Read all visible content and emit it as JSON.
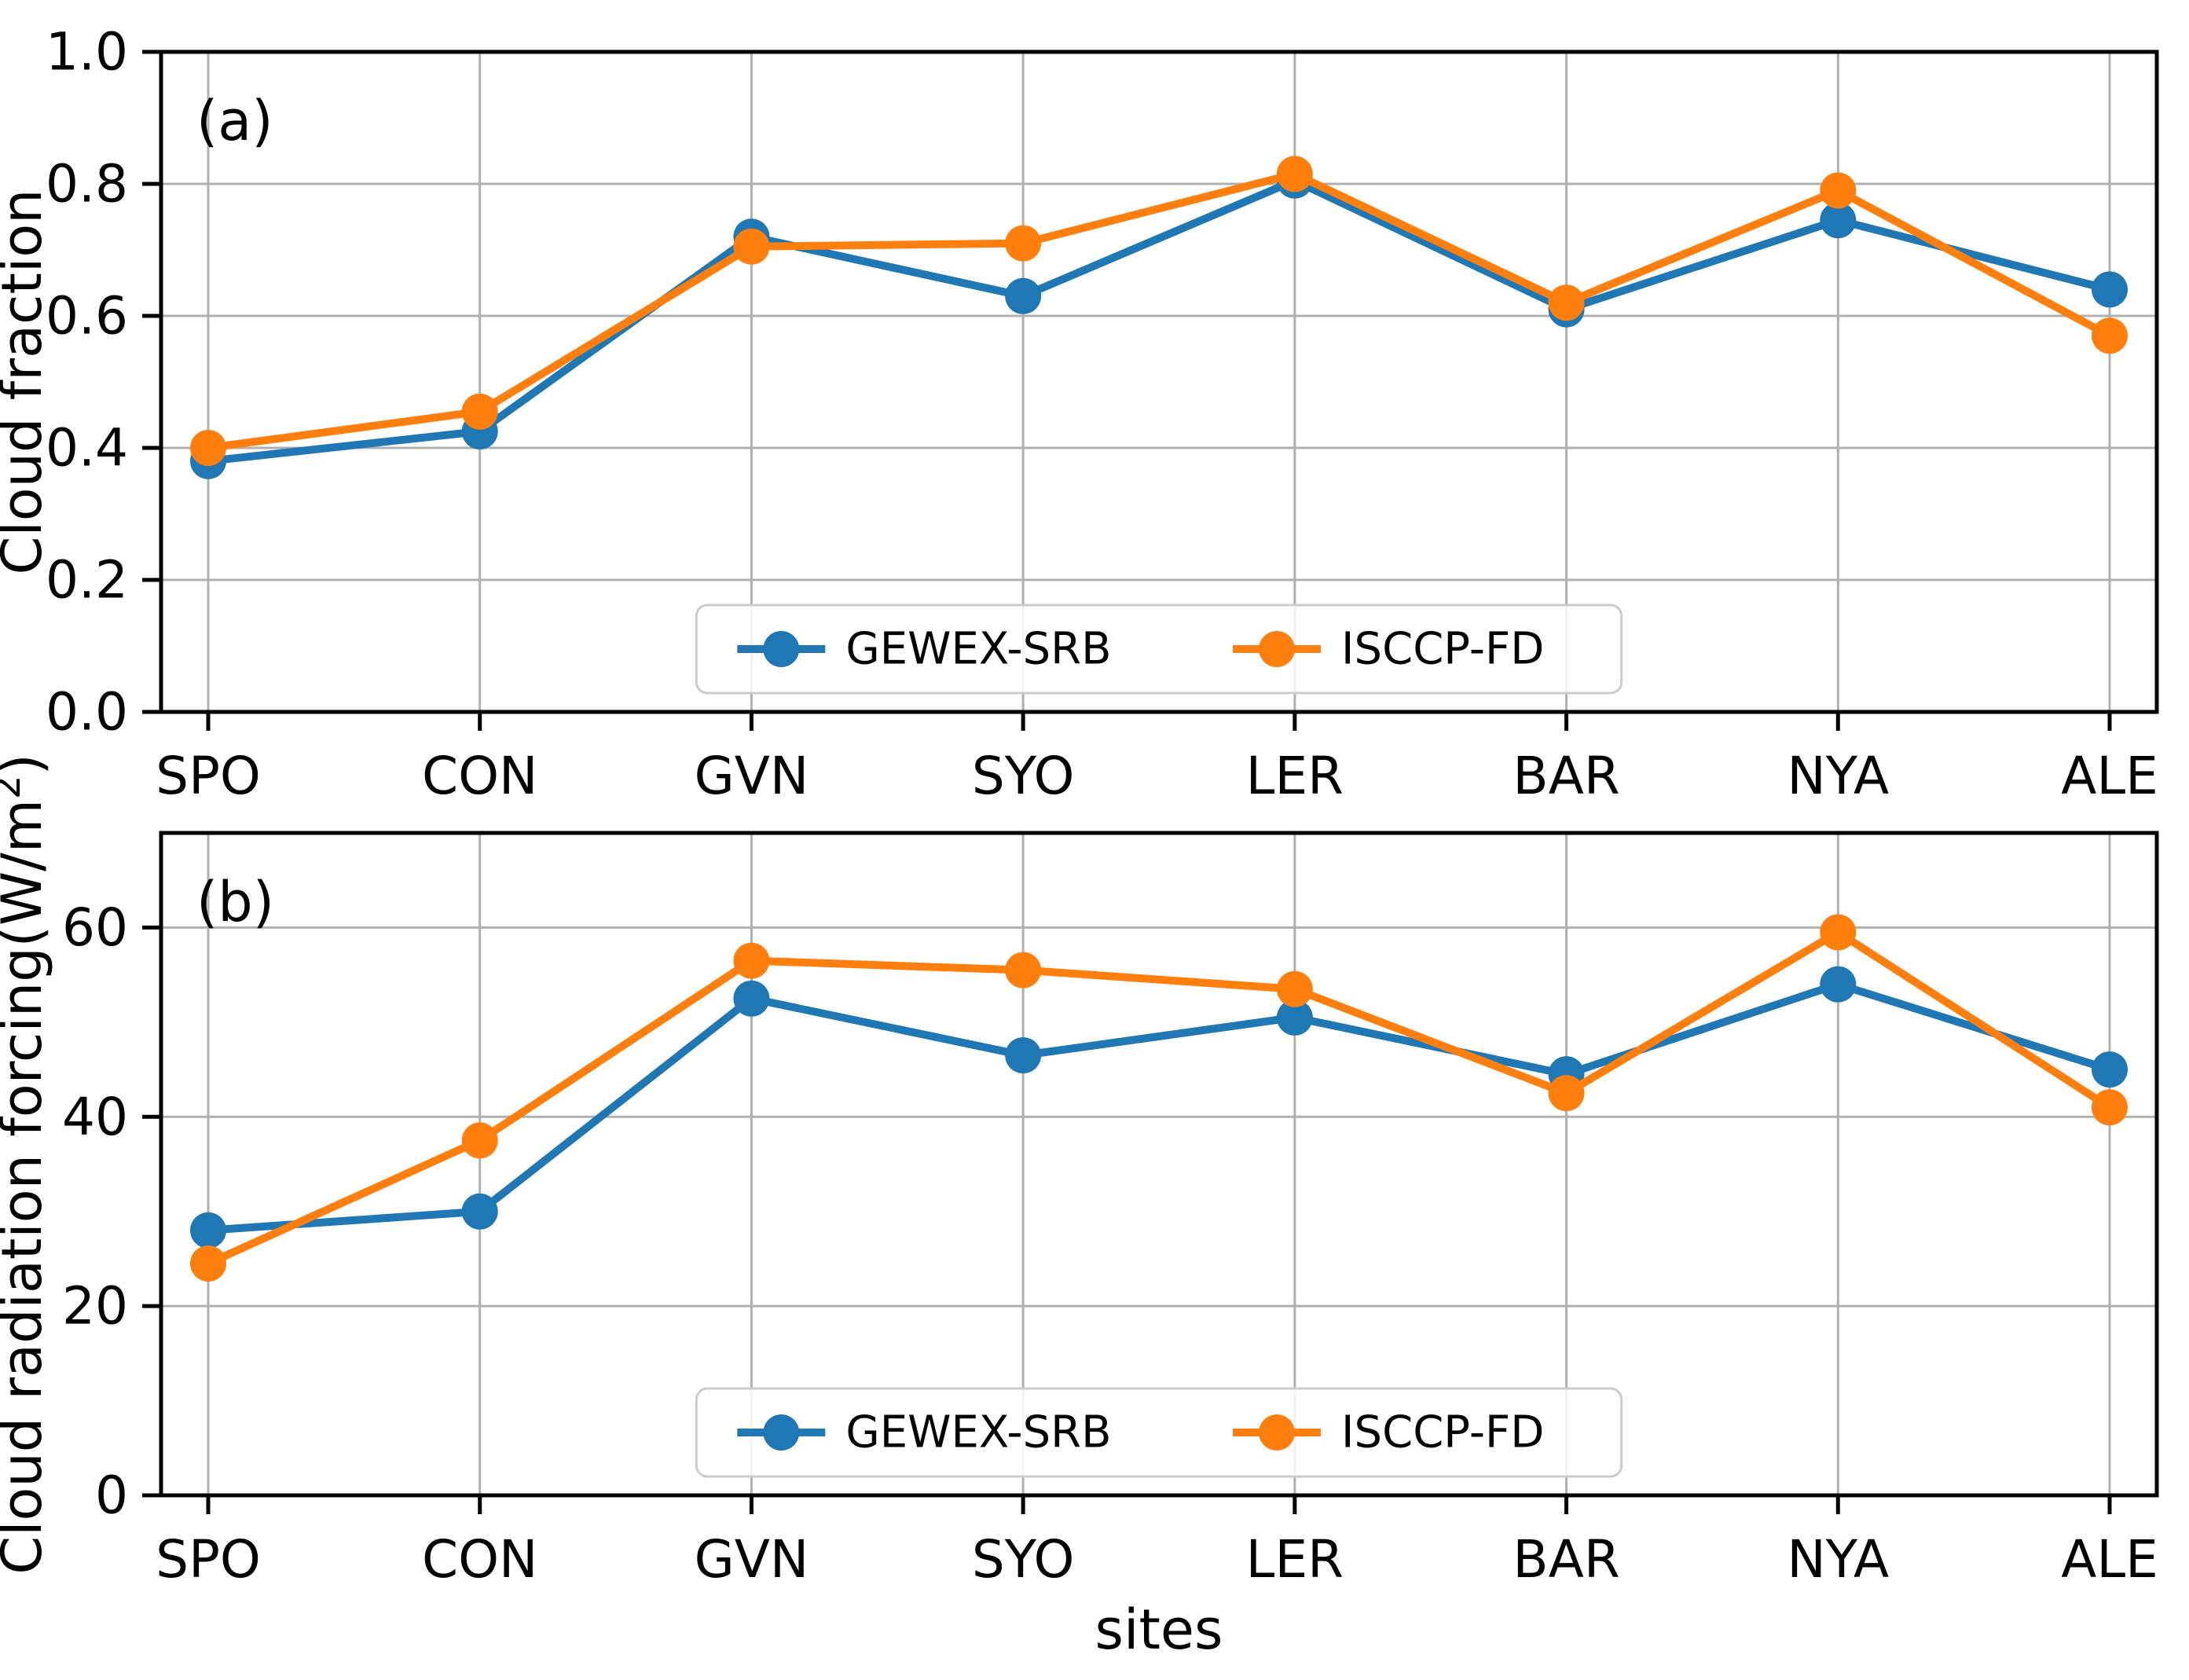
{
  "figure": {
    "background": "#ffffff",
    "colors": {
      "gewex_srb": "#1f77b4",
      "isccp_fd": "#ff7f0e",
      "grid": "#b0b0b0",
      "axis": "#000000",
      "legend_border": "#cccccc",
      "text": "#000000"
    }
  },
  "chart_data": [
    {
      "type": "line",
      "panel_label": "(a)",
      "title": "",
      "xlabel": "",
      "ylabel": "Cloud fraction",
      "categories": [
        "SPO",
        "CON",
        "GVN",
        "SYO",
        "LER",
        "BAR",
        "NYA",
        "ALE"
      ],
      "series": [
        {
          "name": "GEWEX-SRB",
          "color": "#1f77b4",
          "values": [
            0.38,
            0.425,
            0.72,
            0.63,
            0.805,
            0.61,
            0.745,
            0.64
          ]
        },
        {
          "name": "ISCCP-FD",
          "color": "#ff7f0e",
          "values": [
            0.4,
            0.455,
            0.705,
            0.71,
            0.815,
            0.62,
            0.79,
            0.57
          ]
        }
      ],
      "ylim": [
        0.0,
        1.0
      ],
      "yticks": [
        0.0,
        0.2,
        0.4,
        0.6,
        0.8,
        1.0
      ],
      "ytick_labels": [
        "0.0",
        "0.2",
        "0.4",
        "0.6",
        "0.8",
        "1.0"
      ],
      "grid": true,
      "legend_position": "lower center",
      "legend_entries": [
        "GEWEX-SRB",
        "ISCCP-FD"
      ]
    },
    {
      "type": "line",
      "panel_label": "(b)",
      "title": "",
      "xlabel": "sites",
      "ylabel": "Cloud radiation forcing(W/m²)",
      "categories": [
        "SPO",
        "CON",
        "GVN",
        "SYO",
        "LER",
        "BAR",
        "NYA",
        "ALE"
      ],
      "series": [
        {
          "name": "GEWEX-SRB",
          "color": "#1f77b4",
          "values": [
            28,
            30,
            52.5,
            46.5,
            50.5,
            44.5,
            54,
            45
          ]
        },
        {
          "name": "ISCCP-FD",
          "color": "#ff7f0e",
          "values": [
            24.5,
            37.5,
            56.5,
            55.5,
            53.5,
            42.5,
            59.5,
            41
          ]
        }
      ],
      "ylim": [
        0,
        70
      ],
      "yticks": [
        0,
        20,
        40,
        60
      ],
      "ytick_labels": [
        "0",
        "20",
        "40",
        "60"
      ],
      "grid": true,
      "legend_position": "lower center",
      "legend_entries": [
        "GEWEX-SRB",
        "ISCCP-FD"
      ]
    }
  ]
}
